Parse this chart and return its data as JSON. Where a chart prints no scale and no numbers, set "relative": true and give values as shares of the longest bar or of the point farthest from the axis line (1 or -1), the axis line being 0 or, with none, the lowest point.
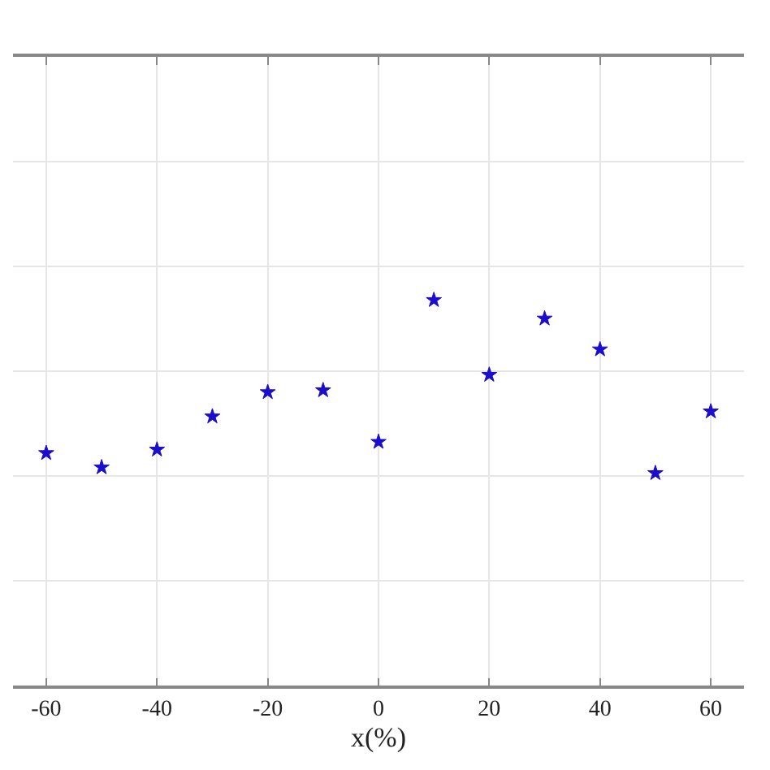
{
  "chart_data": {
    "type": "scatter",
    "xlabel": "x(%)",
    "relative": true,
    "x": [
      -60,
      -50,
      -40,
      -30,
      -20,
      -10,
      0,
      10,
      20,
      30,
      40,
      50,
      60
    ],
    "series": [
      {
        "color": "#1a0dcc",
        "values": [
          0.603,
          0.566,
          0.612,
          0.698,
          0.761,
          0.766,
          0.632,
          1,
          0.806,
          0.952,
          0.872,
          0.551,
          0.711
        ]
      }
    ],
    "xlim": [
      -66,
      66
    ],
    "xticks": [
      -60,
      -40,
      -20,
      0,
      20,
      40,
      60
    ],
    "grid": true,
    "marker": "star",
    "tick_labels": "x"
  }
}
